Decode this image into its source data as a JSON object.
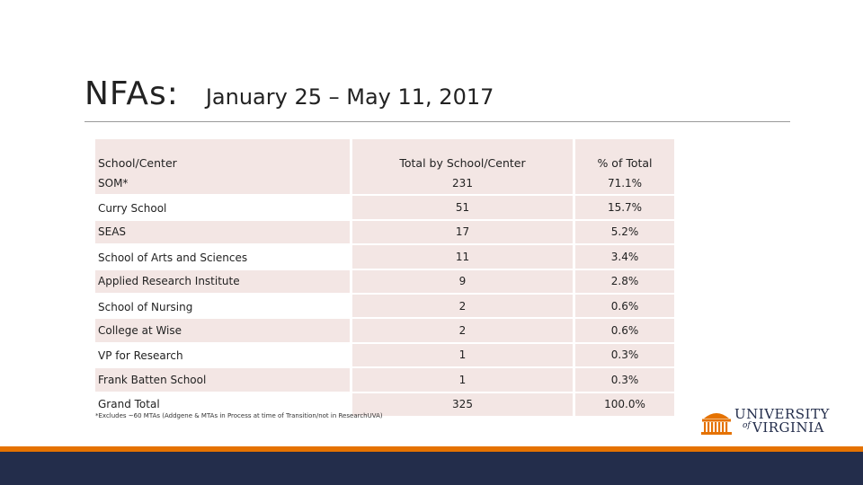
{
  "slide": {
    "title": "NFAs:",
    "subtitle": "January 25 – May 11, 2017",
    "footnote": "*Excludes ~60 MTAs (Addgene & MTAs in Process at time of Transition/not in ResearchUVA)"
  },
  "table": {
    "headers": [
      "School/Center",
      "Total by School/Center",
      "% of Total"
    ],
    "rows": [
      {
        "school": "SOM*",
        "total": "231",
        "pct": "71.1%"
      },
      {
        "school": "Curry School",
        "total": "51",
        "pct": "15.7%"
      },
      {
        "school": "SEAS",
        "total": "17",
        "pct": "5.2%"
      },
      {
        "school": "School of Arts and Sciences",
        "total": "11",
        "pct": "3.4%"
      },
      {
        "school": "Applied Research Institute",
        "total": "9",
        "pct": "2.8%"
      },
      {
        "school": "School of Nursing",
        "total": "2",
        "pct": "0.6%"
      },
      {
        "school": "College at Wise",
        "total": "2",
        "pct": "0.6%"
      },
      {
        "school": "VP for Research",
        "total": "1",
        "pct": "0.3%"
      },
      {
        "school": "Frank Batten School",
        "total": "1",
        "pct": "0.3%"
      },
      {
        "school": "Grand Total",
        "total": "325",
        "pct": "100.0%"
      }
    ]
  },
  "logo": {
    "line1": "UNIVERSITY",
    "of": "of",
    "line2": "VIRGINIA"
  },
  "colors": {
    "accent_orange": "#e57200",
    "navy": "#232d4b",
    "table_shade": "#f3e6e4"
  }
}
